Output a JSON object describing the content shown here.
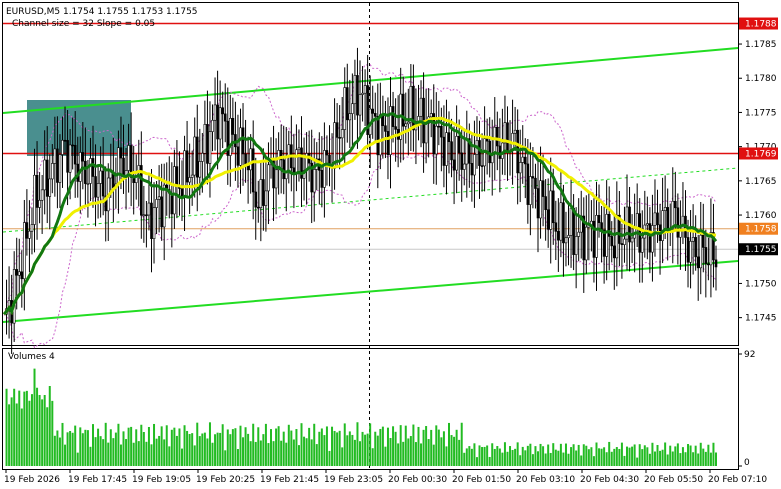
{
  "header": {
    "symbol_line": "EURUSD,M5  1.1754 1.1755 1.1753 1.1755",
    "channel_line": "Channel size = 32 Slope = 0.05"
  },
  "price_axis": {
    "ticks": [
      "1.1785",
      "1.1780",
      "1.1775",
      "1.1770",
      "1.1765",
      "1.1760",
      "1.1750",
      "1.1745"
    ],
    "ymin": 1.1741,
    "ymax": 1.1791
  },
  "price_tags": [
    {
      "label": "1.1788",
      "value": 1.1788,
      "bg": "#e01010",
      "fg": "#ffffff",
      "line_color": "#e01010",
      "line": true
    },
    {
      "label": "1.1769",
      "value": 1.1769,
      "bg": "#e01010",
      "fg": "#ffffff",
      "line_color": "#e01010",
      "line": true
    },
    {
      "label": "1.1758",
      "value": 1.1758,
      "bg": "#f08020",
      "fg": "#ffffff",
      "line_color": "#e0a060",
      "line": true
    },
    {
      "label": "1.1755",
      "value": 1.1755,
      "bg": "#000000",
      "fg": "#ffffff",
      "line_color": "#c8c8c8",
      "line": true
    }
  ],
  "time_axis": {
    "labels": [
      "19 Feb 2026",
      "19 Feb 17:45",
      "19 Feb 19:05",
      "19 Feb 20:25",
      "19 Feb 21:45",
      "19 Feb 23:05",
      "20 Feb 00:30",
      "20 Feb 01:50",
      "20 Feb 03:10",
      "20 Feb 04:30",
      "20 Feb 05:50",
      "20 Feb 07:10"
    ]
  },
  "volume_panel": {
    "title": "Volumes 4",
    "ticks": [
      "92",
      "0"
    ],
    "max": 92
  },
  "colors": {
    "channel": "#22dd22",
    "ma_fast": "#f0f000",
    "ma_slow": "#117711",
    "bollinger": "#cc66cc",
    "candles": "#000000",
    "volumes": "#22bb22",
    "highlight_box": "#4a8f8f",
    "resistance": "#e01010",
    "pivot": "#f08020"
  }
}
